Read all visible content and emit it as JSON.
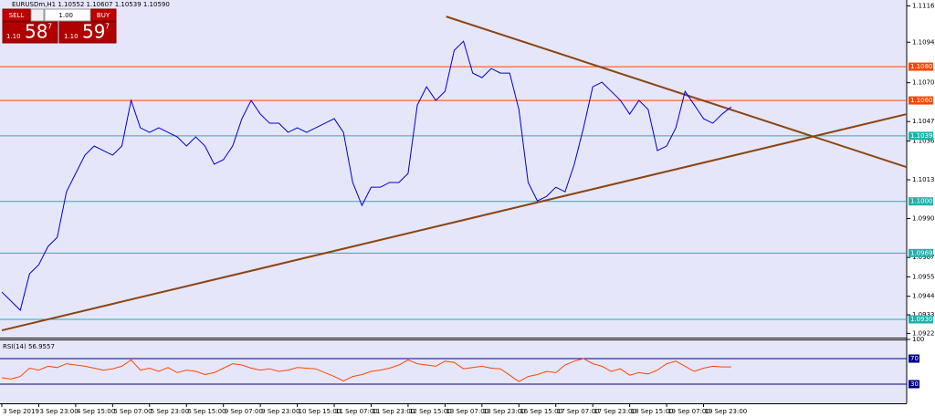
{
  "chart_data": [
    {
      "type": "line",
      "title": "EURUSDm,H1  1.10552 1.10607 1.10539 1.10590",
      "xlim": [
        0,
        392
      ],
      "ylim": [
        1.09195,
        1.11195
      ],
      "yticks": [
        {
          "value": 1.1116,
          "label": "1.11160"
        },
        {
          "value": 1.10945,
          "label": "1.10945"
        },
        {
          "value": 1.10705,
          "label": "1.10705"
        },
        {
          "value": 1.10475,
          "label": "1.10475"
        },
        {
          "value": 1.1036,
          "label": "1.10360"
        },
        {
          "value": 1.1013,
          "label": "1.10130"
        },
        {
          "value": 1.099,
          "label": "1.09900"
        },
        {
          "value": 1.0967,
          "label": "1.09670"
        },
        {
          "value": 1.09555,
          "label": "1.09555"
        },
        {
          "value": 1.0944,
          "label": "1.09440"
        },
        {
          "value": 1.0933,
          "label": "1.09330"
        },
        {
          "value": 1.0922,
          "label": "1.09220"
        }
      ],
      "xticks": [
        {
          "value": 0,
          "label": "3 Sep 2019"
        },
        {
          "value": 16,
          "label": "3 Sep 23:00"
        },
        {
          "value": 32,
          "label": "4 Sep 15:00"
        },
        {
          "value": 48,
          "label": "5 Sep 07:00"
        },
        {
          "value": 64,
          "label": "5 Sep 23:00"
        },
        {
          "value": 80,
          "label": "6 Sep 15:00"
        },
        {
          "value": 96,
          "label": "9 Sep 07:00"
        },
        {
          "value": 112,
          "label": "9 Sep 23:00"
        },
        {
          "value": 128,
          "label": "10 Sep 15:00"
        },
        {
          "value": 144,
          "label": "11 Sep 07:00"
        },
        {
          "value": 160,
          "label": "11 Sep 23:00"
        },
        {
          "value": 176,
          "label": "12 Sep 15:00"
        },
        {
          "value": 192,
          "label": "13 Sep 07:00"
        },
        {
          "value": 208,
          "label": "13 Sep 23:00"
        },
        {
          "value": 224,
          "label": "16 Sep 15:00"
        },
        {
          "value": 240,
          "label": "17 Sep 07:00"
        },
        {
          "value": 256,
          "label": "17 Sep 23:00"
        },
        {
          "value": 272,
          "label": "18 Sep 15:00"
        },
        {
          "value": 288,
          "label": "19 Sep 07:00"
        },
        {
          "value": 304,
          "label": "19 Sep 23:00"
        }
      ],
      "series": [
        {
          "color": "#0000cd",
          "x": [
            0,
            4,
            8,
            12,
            16,
            20,
            24,
            28,
            32,
            36,
            40,
            44,
            48,
            52,
            56,
            60,
            64,
            68,
            72,
            76,
            80,
            84,
            88,
            92,
            96,
            100,
            104,
            108,
            112,
            116,
            120,
            124,
            128,
            132,
            136,
            140,
            144,
            148,
            152,
            156,
            160,
            164,
            168,
            172,
            176,
            180,
            184,
            188,
            192,
            196,
            200,
            204,
            208,
            212,
            216,
            220,
            224,
            228,
            232,
            236,
            240,
            244,
            248,
            252,
            256,
            260,
            264,
            268,
            272,
            276,
            280,
            284,
            288,
            292,
            296,
            300,
            304,
            308,
            312,
            316
          ],
          "values": [
            1.09465,
            1.09411,
            1.09357,
            1.09573,
            1.09627,
            1.09735,
            1.09789,
            1.10059,
            1.10168,
            1.10276,
            1.1033,
            1.10303,
            1.10276,
            1.1033,
            1.106,
            1.10438,
            1.10411,
            1.10438,
            1.10411,
            1.10384,
            1.1033,
            1.10384,
            1.1033,
            1.10222,
            1.10249,
            1.1033,
            1.10492,
            1.106,
            1.10519,
            1.10465,
            1.10465,
            1.10411,
            1.10438,
            1.10411,
            1.10438,
            1.10465,
            1.10492,
            1.10411,
            1.10114,
            1.09978,
            1.10086,
            1.10086,
            1.10114,
            1.10114,
            1.10168,
            1.10573,
            1.10681,
            1.106,
            1.10654,
            1.10897,
            1.10951,
            1.10762,
            1.10735,
            1.10789,
            1.10762,
            1.10762,
            1.10546,
            1.10114,
            1.10005,
            1.10032,
            1.10086,
            1.10059,
            1.10222,
            1.10438,
            1.10681,
            1.10708,
            1.10654,
            1.106,
            1.10519,
            1.106,
            1.10546,
            1.10303,
            1.1033,
            1.10438,
            1.10654,
            1.10573,
            1.10492,
            1.10465,
            1.10519,
            1.10562
          ]
        }
      ],
      "trendlines": [
        {
          "color": "#8b4513",
          "x": [
            0,
            392
          ],
          "values": [
            1.09238,
            1.10519
          ]
        },
        {
          "color": "#8b4513",
          "x": [
            192.5,
            392
          ],
          "values": [
            1.11097,
            1.10205
          ]
        }
      ],
      "levels": [
        {
          "value": 1.108,
          "label": "1.10800",
          "color": "#ff4500"
        },
        {
          "value": 1.106,
          "label": "1.10600",
          "color": "#ff4500"
        },
        {
          "value": 1.1039,
          "label": "1.10390",
          "color": "#20b2aa"
        },
        {
          "value": 1.10002,
          "label": "1.10002",
          "color": "#20b2aa"
        },
        {
          "value": 1.09696,
          "label": "1.09696",
          "color": "#20b2aa"
        },
        {
          "value": 1.09303,
          "label": "1.09303",
          "color": "#20b2aa"
        }
      ]
    },
    {
      "type": "line",
      "title": "RSI(14) 56.9557",
      "xlim": [
        0,
        392
      ],
      "ylim": [
        0,
        100
      ],
      "yticks": [
        100
      ],
      "levels": [
        70,
        30
      ],
      "level_color": "#000080",
      "series": [
        {
          "color": "#ff4500",
          "x": [
            0,
            4,
            8,
            12,
            16,
            20,
            24,
            28,
            32,
            36,
            40,
            44,
            48,
            52,
            56,
            60,
            64,
            68,
            72,
            76,
            80,
            84,
            88,
            92,
            96,
            100,
            104,
            108,
            112,
            116,
            120,
            124,
            128,
            132,
            136,
            140,
            144,
            148,
            152,
            156,
            160,
            164,
            168,
            172,
            176,
            180,
            184,
            188,
            192,
            196,
            200,
            204,
            208,
            212,
            216,
            220,
            224,
            228,
            232,
            236,
            240,
            244,
            248,
            252,
            256,
            260,
            264,
            268,
            272,
            276,
            280,
            284,
            288,
            292,
            296,
            300,
            304,
            308,
            312,
            316
          ],
          "values": [
            40,
            38,
            42,
            55,
            52,
            58,
            56,
            62,
            60,
            58,
            55,
            52,
            54,
            58,
            68,
            52,
            55,
            50,
            56,
            48,
            52,
            50,
            45,
            48,
            55,
            62,
            60,
            55,
            52,
            54,
            50,
            52,
            56,
            55,
            54,
            48,
            42,
            35,
            42,
            45,
            50,
            52,
            55,
            60,
            68,
            62,
            60,
            58,
            66,
            64,
            54,
            56,
            58,
            55,
            54,
            44,
            34,
            42,
            45,
            50,
            48,
            60,
            66,
            70,
            62,
            58,
            50,
            54,
            44,
            48,
            46,
            52,
            62,
            66,
            58,
            50,
            55,
            58,
            57,
            56.9557
          ]
        }
      ]
    }
  ],
  "trade_panel": {
    "sell": "SELL",
    "lot": "1.00",
    "buy": "BUY",
    "sell_price": {
      "big": "1.10",
      "pips": "58",
      "point": "7"
    },
    "buy_price": {
      "big": "1.10",
      "pips": "59",
      "point": "7"
    }
  }
}
